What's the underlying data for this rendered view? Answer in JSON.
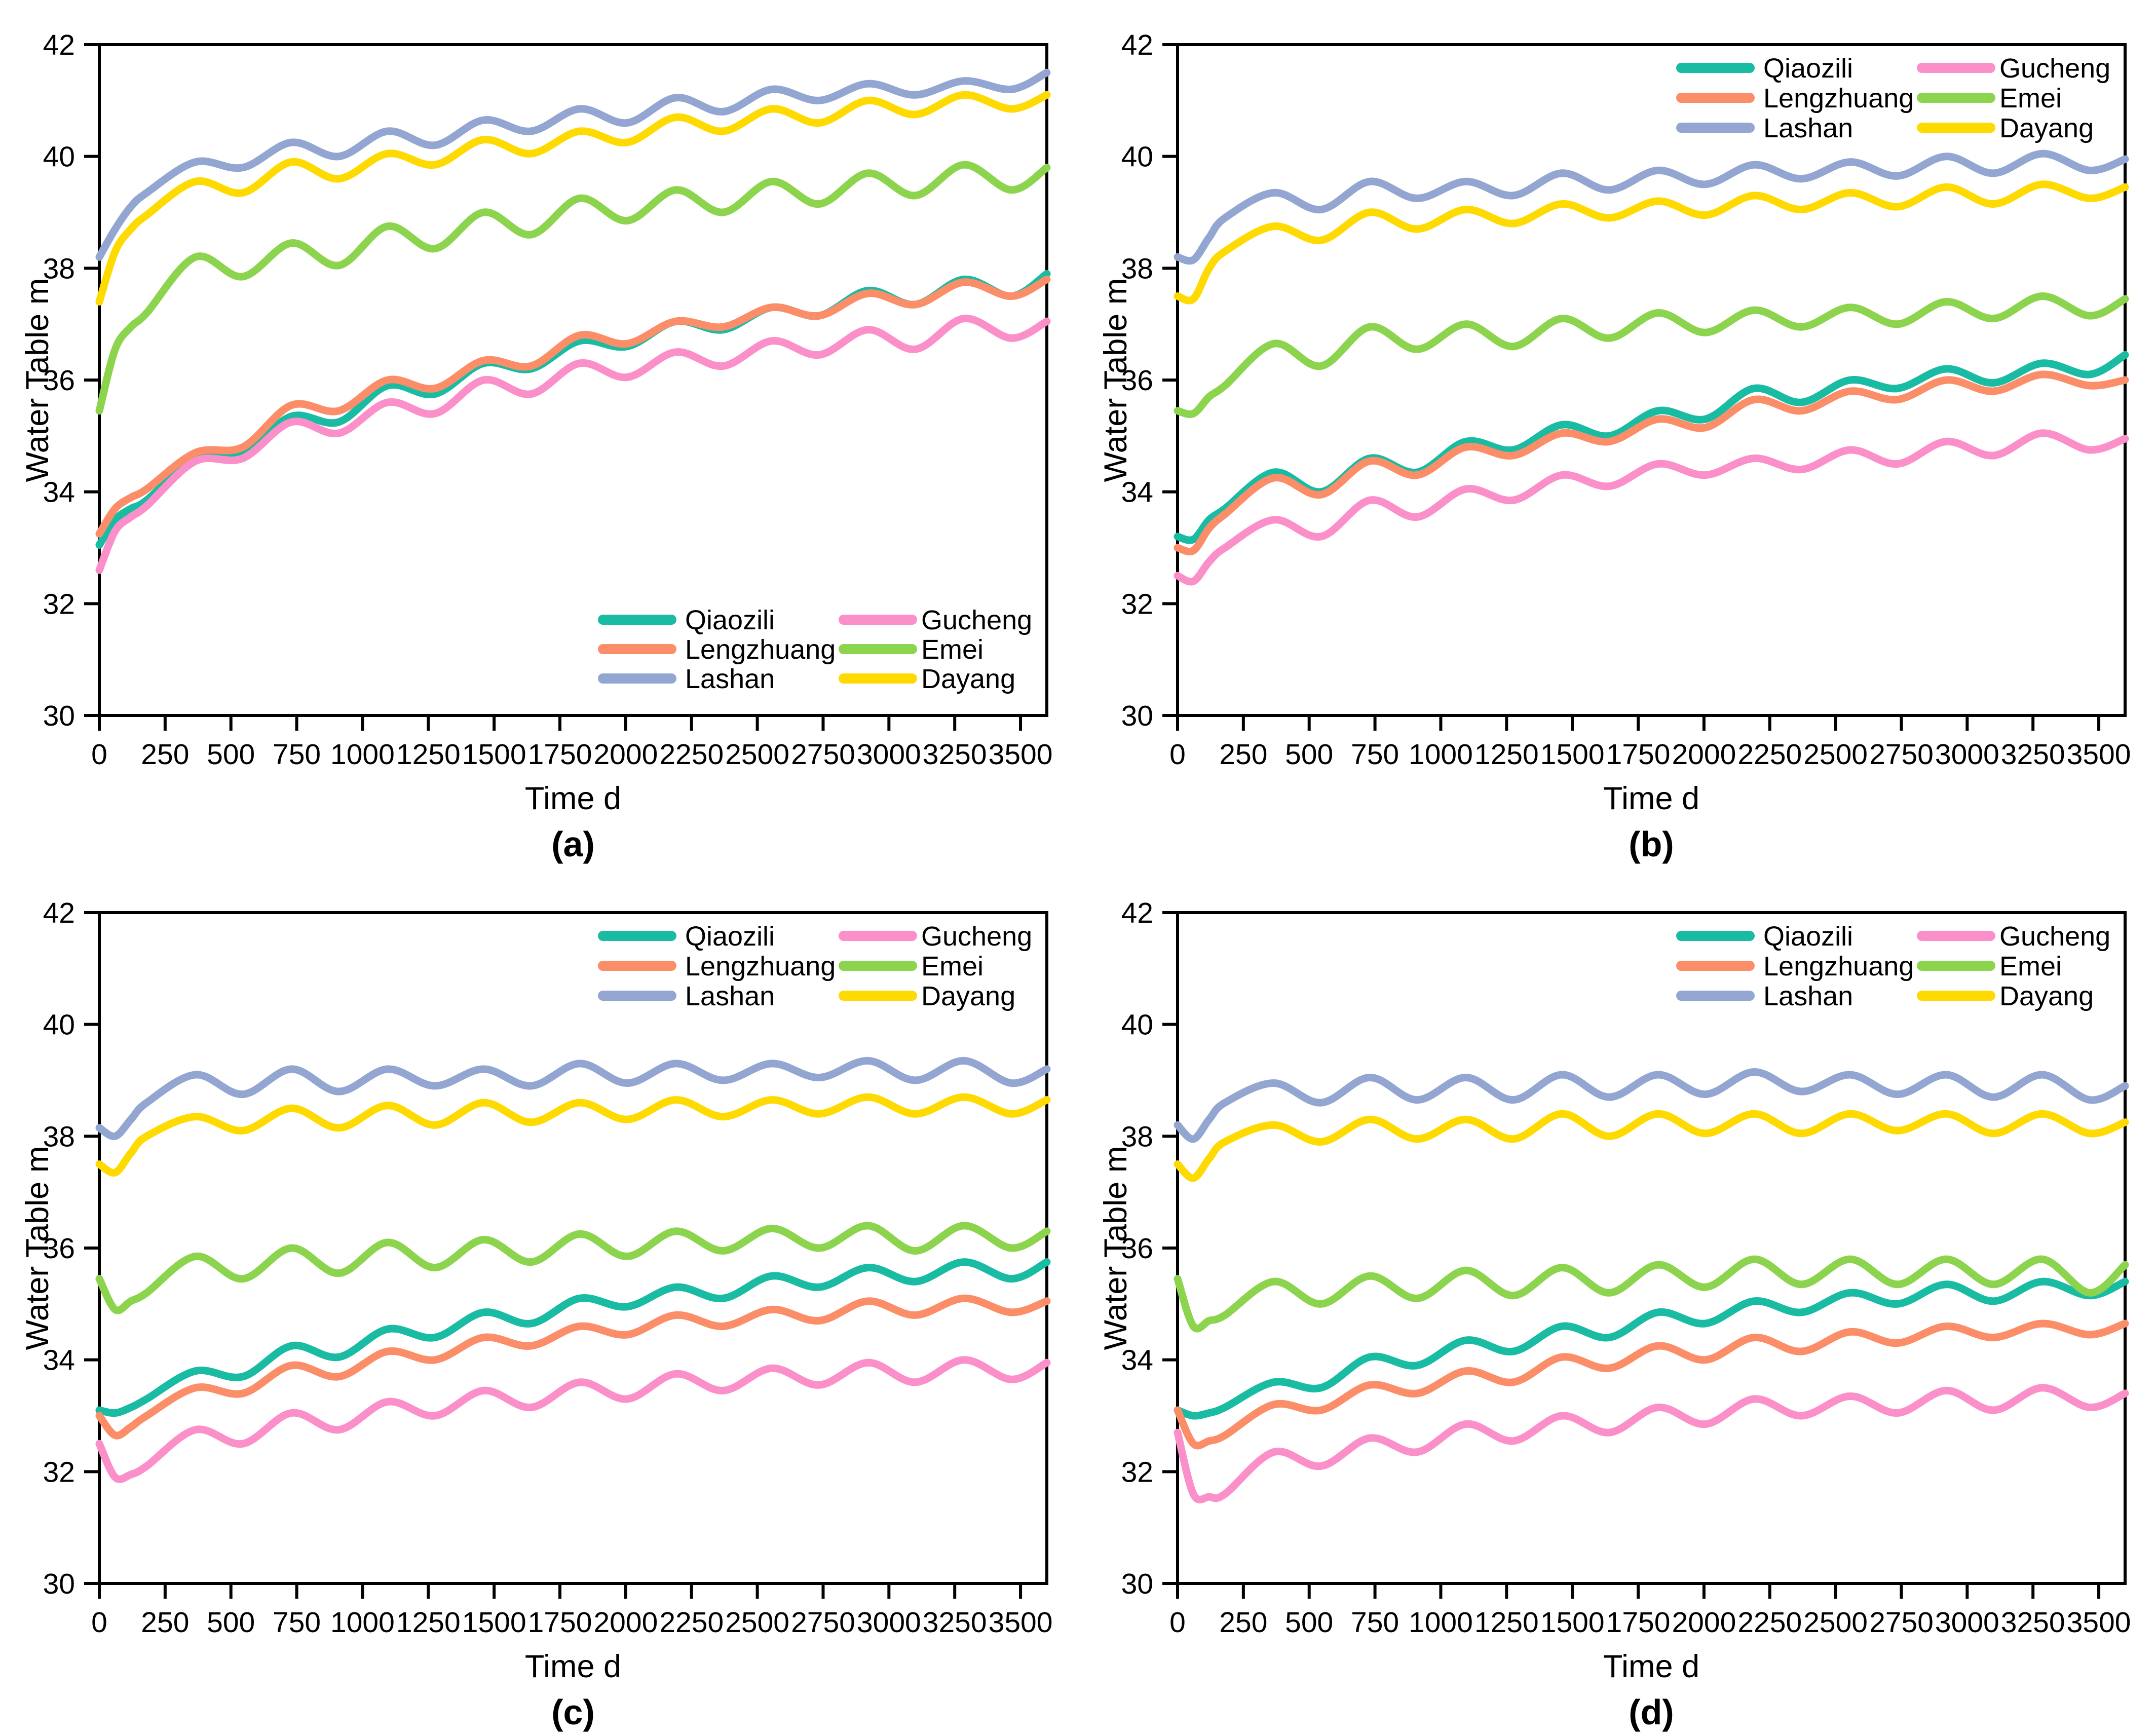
{
  "figure": {
    "background_color": "#ffffff",
    "text_color": "#000000",
    "layout": "2x2 panels of identical line charts"
  },
  "chart_data": [
    {
      "type": "line",
      "panel_label": "(a)",
      "xlabel": "Time d",
      "ylabel": "Water Table m",
      "xlim": [
        0,
        3600
      ],
      "ylim": [
        30,
        42
      ],
      "xticks": [
        0,
        250,
        500,
        750,
        1000,
        1250,
        1500,
        1750,
        2000,
        2250,
        2500,
        2750,
        3000,
        3250,
        3500
      ],
      "yticks": [
        30,
        32,
        34,
        36,
        38,
        40,
        42
      ],
      "grid": false,
      "legend": {
        "position": "bottom-right",
        "columns": 2
      },
      "x": [
        0,
        60,
        120,
        180,
        365,
        545,
        730,
        910,
        1095,
        1275,
        1460,
        1640,
        1825,
        2005,
        2190,
        2370,
        2555,
        2735,
        2920,
        3100,
        3285,
        3465,
        3600
      ],
      "series": [
        {
          "name": "Qiaozili",
          "color": "#19BCA3",
          "values": [
            33.05,
            33.5,
            33.7,
            33.85,
            34.6,
            34.7,
            35.35,
            35.25,
            35.9,
            35.75,
            36.3,
            36.2,
            36.7,
            36.6,
            37.05,
            36.9,
            37.3,
            37.15,
            37.6,
            37.35,
            37.8,
            37.5,
            37.9
          ]
        },
        {
          "name": "Lengzhuang",
          "color": "#FB8E69",
          "values": [
            33.25,
            33.7,
            33.9,
            34.05,
            34.7,
            34.8,
            35.55,
            35.45,
            36.0,
            35.85,
            36.35,
            36.25,
            36.8,
            36.65,
            37.05,
            36.95,
            37.3,
            37.15,
            37.55,
            37.35,
            37.75,
            37.5,
            37.8
          ]
        },
        {
          "name": "Lashan",
          "color": "#93A6D1",
          "values": [
            38.2,
            38.7,
            39.1,
            39.35,
            39.9,
            39.8,
            40.25,
            40.0,
            40.45,
            40.2,
            40.65,
            40.45,
            40.85,
            40.6,
            41.05,
            40.8,
            41.2,
            41.0,
            41.3,
            41.1,
            41.35,
            41.2,
            41.5
          ]
        },
        {
          "name": "Gucheng",
          "color": "#FB8FC9",
          "values": [
            32.6,
            33.3,
            33.55,
            33.75,
            34.55,
            34.6,
            35.25,
            35.05,
            35.6,
            35.4,
            36.0,
            35.75,
            36.3,
            36.05,
            36.5,
            36.25,
            36.7,
            36.45,
            36.9,
            36.55,
            37.1,
            36.75,
            37.05
          ]
        },
        {
          "name": "Emei",
          "color": "#8DD44E",
          "values": [
            35.45,
            36.55,
            36.95,
            37.2,
            38.2,
            37.85,
            38.45,
            38.05,
            38.75,
            38.35,
            39.0,
            38.6,
            39.25,
            38.85,
            39.4,
            39.0,
            39.55,
            39.15,
            39.7,
            39.3,
            39.85,
            39.4,
            39.8
          ]
        },
        {
          "name": "Dayang",
          "color": "#FFDA00",
          "values": [
            37.4,
            38.3,
            38.7,
            38.95,
            39.55,
            39.35,
            39.9,
            39.6,
            40.05,
            39.85,
            40.3,
            40.05,
            40.45,
            40.25,
            40.7,
            40.45,
            40.85,
            40.6,
            41.0,
            40.75,
            41.1,
            40.85,
            41.1
          ]
        }
      ]
    },
    {
      "type": "line",
      "panel_label": "(b)",
      "xlabel": "Time d",
      "ylabel": "Water Table m",
      "xlim": [
        0,
        3600
      ],
      "ylim": [
        30,
        42
      ],
      "xticks": [
        0,
        250,
        500,
        750,
        1000,
        1250,
        1500,
        1750,
        2000,
        2250,
        2500,
        2750,
        3000,
        3250,
        3500
      ],
      "yticks": [
        30,
        32,
        34,
        36,
        38,
        40,
        42
      ],
      "grid": false,
      "legend": {
        "position": "top-right",
        "columns": 2
      },
      "x": [
        0,
        60,
        120,
        180,
        365,
        545,
        730,
        910,
        1095,
        1275,
        1460,
        1640,
        1825,
        2005,
        2190,
        2370,
        2555,
        2735,
        2920,
        3100,
        3285,
        3465,
        3600
      ],
      "series": [
        {
          "name": "Qiaozili",
          "color": "#19BCA3",
          "values": [
            33.2,
            33.15,
            33.5,
            33.7,
            34.35,
            34.0,
            34.6,
            34.35,
            34.9,
            34.75,
            35.2,
            35.0,
            35.45,
            35.3,
            35.85,
            35.6,
            36.0,
            35.85,
            36.2,
            35.95,
            36.3,
            36.1,
            36.45
          ]
        },
        {
          "name": "Lengzhuang",
          "color": "#FB8E69",
          "values": [
            33.0,
            32.95,
            33.35,
            33.6,
            34.25,
            33.95,
            34.55,
            34.3,
            34.8,
            34.65,
            35.05,
            34.9,
            35.3,
            35.15,
            35.65,
            35.45,
            35.8,
            35.65,
            36.0,
            35.8,
            36.1,
            35.9,
            36.0
          ]
        },
        {
          "name": "Lashan",
          "color": "#93A6D1",
          "values": [
            38.2,
            38.15,
            38.55,
            38.9,
            39.35,
            39.05,
            39.55,
            39.25,
            39.55,
            39.3,
            39.7,
            39.4,
            39.75,
            39.5,
            39.85,
            39.6,
            39.9,
            39.65,
            40.0,
            39.7,
            40.05,
            39.75,
            39.95
          ]
        },
        {
          "name": "Gucheng",
          "color": "#FB8FC9",
          "values": [
            32.5,
            32.4,
            32.75,
            33.0,
            33.5,
            33.2,
            33.85,
            33.55,
            34.05,
            33.85,
            34.3,
            34.1,
            34.5,
            34.3,
            34.6,
            34.4,
            34.75,
            34.5,
            34.9,
            34.65,
            35.05,
            34.75,
            34.95
          ]
        },
        {
          "name": "Emei",
          "color": "#8DD44E",
          "values": [
            35.45,
            35.4,
            35.7,
            35.9,
            36.65,
            36.25,
            36.95,
            36.55,
            37.0,
            36.6,
            37.1,
            36.75,
            37.2,
            36.85,
            37.25,
            36.95,
            37.3,
            37.0,
            37.4,
            37.1,
            37.5,
            37.15,
            37.45
          ]
        },
        {
          "name": "Dayang",
          "color": "#FFDA00",
          "values": [
            37.5,
            37.45,
            38.0,
            38.3,
            38.75,
            38.5,
            39.0,
            38.7,
            39.05,
            38.8,
            39.15,
            38.9,
            39.2,
            38.95,
            39.3,
            39.05,
            39.35,
            39.1,
            39.45,
            39.15,
            39.5,
            39.25,
            39.45
          ]
        }
      ]
    },
    {
      "type": "line",
      "panel_label": "(c)",
      "xlabel": "Time d",
      "ylabel": "Water Table m",
      "xlim": [
        0,
        3600
      ],
      "ylim": [
        30,
        42
      ],
      "xticks": [
        0,
        250,
        500,
        750,
        1000,
        1250,
        1500,
        1750,
        2000,
        2250,
        2500,
        2750,
        3000,
        3250,
        3500
      ],
      "yticks": [
        30,
        32,
        34,
        36,
        38,
        40,
        42
      ],
      "grid": false,
      "legend": {
        "position": "top-right",
        "columns": 2
      },
      "x": [
        0,
        60,
        120,
        180,
        365,
        545,
        730,
        910,
        1095,
        1275,
        1460,
        1640,
        1825,
        2005,
        2190,
        2370,
        2555,
        2735,
        2920,
        3100,
        3285,
        3465,
        3600
      ],
      "series": [
        {
          "name": "Qiaozili",
          "color": "#19BCA3",
          "values": [
            33.1,
            33.05,
            33.15,
            33.3,
            33.8,
            33.7,
            34.25,
            34.05,
            34.55,
            34.4,
            34.85,
            34.65,
            35.1,
            34.95,
            35.3,
            35.1,
            35.5,
            35.3,
            35.65,
            35.4,
            35.75,
            35.45,
            35.75
          ]
        },
        {
          "name": "Lengzhuang",
          "color": "#FB8E69",
          "values": [
            33.0,
            32.65,
            32.8,
            33.0,
            33.5,
            33.4,
            33.9,
            33.7,
            34.15,
            34.0,
            34.4,
            34.25,
            34.6,
            34.45,
            34.8,
            34.6,
            34.9,
            34.7,
            35.05,
            34.8,
            35.1,
            34.85,
            35.05
          ]
        },
        {
          "name": "Lashan",
          "color": "#93A6D1",
          "values": [
            38.15,
            38.0,
            38.3,
            38.6,
            39.1,
            38.75,
            39.2,
            38.8,
            39.2,
            38.9,
            39.2,
            38.9,
            39.3,
            38.95,
            39.3,
            39.0,
            39.3,
            39.05,
            39.35,
            39.0,
            39.35,
            38.95,
            39.2
          ]
        },
        {
          "name": "Gucheng",
          "color": "#FB8FC9",
          "values": [
            32.5,
            31.9,
            31.95,
            32.1,
            32.75,
            32.5,
            33.05,
            32.75,
            33.25,
            33.0,
            33.45,
            33.15,
            33.6,
            33.3,
            33.75,
            33.45,
            33.85,
            33.55,
            33.95,
            33.6,
            34.0,
            33.65,
            33.95
          ]
        },
        {
          "name": "Emei",
          "color": "#8DD44E",
          "values": [
            35.45,
            34.9,
            35.05,
            35.2,
            35.85,
            35.45,
            36.0,
            35.55,
            36.1,
            35.65,
            36.15,
            35.75,
            36.25,
            35.85,
            36.3,
            35.95,
            36.35,
            36.0,
            36.4,
            35.95,
            36.4,
            36.0,
            36.3
          ]
        },
        {
          "name": "Dayang",
          "color": "#FFDA00",
          "values": [
            37.5,
            37.35,
            37.7,
            38.0,
            38.35,
            38.1,
            38.5,
            38.15,
            38.55,
            38.2,
            38.6,
            38.25,
            38.6,
            38.3,
            38.65,
            38.35,
            38.65,
            38.4,
            38.7,
            38.4,
            38.7,
            38.4,
            38.65
          ]
        }
      ]
    },
    {
      "type": "line",
      "panel_label": "(d)",
      "xlabel": "Time d",
      "ylabel": "Water Table m",
      "xlim": [
        0,
        3600
      ],
      "ylim": [
        30,
        42
      ],
      "xticks": [
        0,
        250,
        500,
        750,
        1000,
        1250,
        1500,
        1750,
        2000,
        2250,
        2500,
        2750,
        3000,
        3250,
        3500
      ],
      "yticks": [
        30,
        32,
        34,
        36,
        38,
        40,
        42
      ],
      "grid": false,
      "legend": {
        "position": "top-right",
        "columns": 2
      },
      "x": [
        0,
        60,
        120,
        180,
        365,
        545,
        730,
        910,
        1095,
        1275,
        1460,
        1640,
        1825,
        2005,
        2190,
        2370,
        2555,
        2735,
        2920,
        3100,
        3285,
        3465,
        3600
      ],
      "series": [
        {
          "name": "Qiaozili",
          "color": "#19BCA3",
          "values": [
            33.1,
            33.0,
            33.05,
            33.15,
            33.6,
            33.5,
            34.05,
            33.9,
            34.35,
            34.15,
            34.6,
            34.4,
            34.85,
            34.65,
            35.05,
            34.85,
            35.2,
            35.0,
            35.35,
            35.05,
            35.4,
            35.15,
            35.4
          ]
        },
        {
          "name": "Lengzhuang",
          "color": "#FB8E69",
          "values": [
            33.1,
            32.5,
            32.55,
            32.65,
            33.2,
            33.1,
            33.55,
            33.4,
            33.8,
            33.6,
            34.05,
            33.85,
            34.25,
            34.0,
            34.4,
            34.15,
            34.5,
            34.3,
            34.6,
            34.4,
            34.65,
            34.45,
            34.65
          ]
        },
        {
          "name": "Lashan",
          "color": "#93A6D1",
          "values": [
            38.2,
            37.95,
            38.3,
            38.6,
            38.95,
            38.6,
            39.05,
            38.65,
            39.05,
            38.65,
            39.1,
            38.7,
            39.1,
            38.75,
            39.15,
            38.8,
            39.1,
            38.75,
            39.1,
            38.7,
            39.1,
            38.65,
            38.9
          ]
        },
        {
          "name": "Gucheng",
          "color": "#FB8FC9",
          "values": [
            32.7,
            31.6,
            31.55,
            31.6,
            32.35,
            32.1,
            32.6,
            32.35,
            32.85,
            32.55,
            33.0,
            32.7,
            33.15,
            32.85,
            33.3,
            33.0,
            33.35,
            33.05,
            33.45,
            33.1,
            33.5,
            33.15,
            33.4
          ]
        },
        {
          "name": "Emei",
          "color": "#8DD44E",
          "values": [
            35.45,
            34.6,
            34.7,
            34.8,
            35.4,
            35.0,
            35.5,
            35.1,
            35.6,
            35.15,
            35.65,
            35.2,
            35.7,
            35.3,
            35.8,
            35.35,
            35.8,
            35.35,
            35.8,
            35.35,
            35.8,
            35.2,
            35.7
          ]
        },
        {
          "name": "Dayang",
          "color": "#FFDA00",
          "values": [
            37.5,
            37.25,
            37.6,
            37.9,
            38.2,
            37.9,
            38.3,
            37.95,
            38.3,
            37.95,
            38.4,
            38.0,
            38.4,
            38.05,
            38.4,
            38.05,
            38.4,
            38.1,
            38.4,
            38.05,
            38.4,
            38.05,
            38.25
          ]
        }
      ]
    }
  ]
}
